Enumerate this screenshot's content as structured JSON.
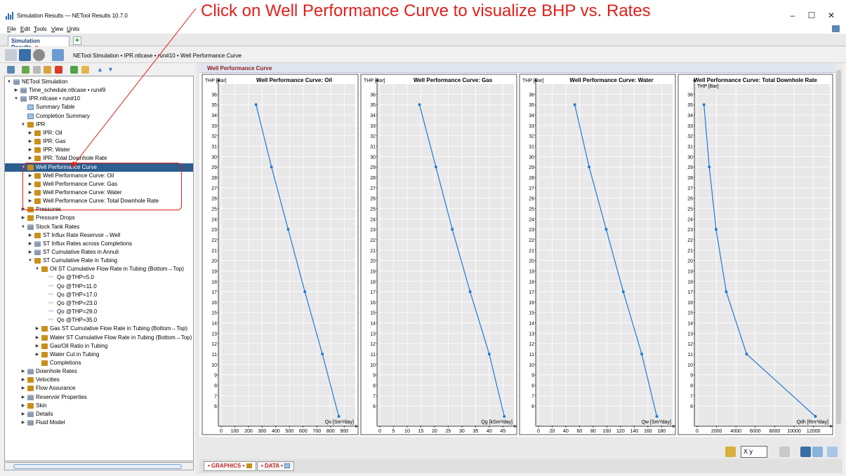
{
  "window": {
    "title": "Simulation Results — NETool Results 10.7.0",
    "minimize": "–",
    "maximize": "☐",
    "close": "✕"
  },
  "callout": "Click on Well Performance Curve to visualize BHP vs. Rates",
  "menu": [
    "File",
    "Edit",
    "Tools",
    "View",
    "Units"
  ],
  "tabs": {
    "active": "Simulation Results",
    "close": "✕",
    "add": "+"
  },
  "breadcrumb": "NETool Simulation  •  IPR.ntlcase • run#10  •  Well Performance Curve",
  "tree": [
    {
      "label": "NETool Simulation",
      "level": 0,
      "tw": "▼",
      "icon": "folder"
    },
    {
      "label": "Time_schedule.ntlcase • run#9",
      "level": 1,
      "tw": "▶",
      "icon": "folder"
    },
    {
      "label": "IPR.ntlcase • run#10",
      "level": 1,
      "tw": "▼",
      "icon": "folder"
    },
    {
      "label": "Summary Table",
      "level": 2,
      "tw": "",
      "icon": "table"
    },
    {
      "label": "Completion Summary",
      "level": 2,
      "tw": "",
      "icon": "table"
    },
    {
      "label": "IPR",
      "level": 2,
      "tw": "▼",
      "icon": "chart"
    },
    {
      "label": "IPR: Oil",
      "level": 3,
      "tw": "▶",
      "icon": "chart"
    },
    {
      "label": "IPR: Gas",
      "level": 3,
      "tw": "▶",
      "icon": "chart"
    },
    {
      "label": "IPR: Water",
      "level": 3,
      "tw": "▶",
      "icon": "chart"
    },
    {
      "label": "IPR: Total Downhole Rate",
      "level": 3,
      "tw": "▶",
      "icon": "chart"
    },
    {
      "label": "Well Performance Curve",
      "level": 2,
      "tw": "▼",
      "icon": "chart",
      "selected": true
    },
    {
      "label": "Well Performance Curve: Oil",
      "level": 3,
      "tw": "▶",
      "icon": "chart"
    },
    {
      "label": "Well Performance Curve: Gas",
      "level": 3,
      "tw": "▶",
      "icon": "chart"
    },
    {
      "label": "Well Performance Curve: Water",
      "level": 3,
      "tw": "▶",
      "icon": "chart"
    },
    {
      "label": "Well Performance Curve: Total Downhole Rate",
      "level": 3,
      "tw": "▶",
      "icon": "chart"
    },
    {
      "label": "Pressures",
      "level": 2,
      "tw": "▶",
      "icon": "chart"
    },
    {
      "label": "Pressure Drops",
      "level": 2,
      "tw": "▶",
      "icon": "chart"
    },
    {
      "label": "Stock Tank Rates",
      "level": 2,
      "tw": "▼",
      "icon": "folder"
    },
    {
      "label": "ST Influx Rate Reservoir→Well",
      "level": 3,
      "tw": "▶",
      "icon": "chart"
    },
    {
      "label": "ST Influx Rates across Completions",
      "level": 3,
      "tw": "▶",
      "icon": "folder"
    },
    {
      "label": "ST Cumulative Rates in Annuli",
      "level": 3,
      "tw": "▶",
      "icon": "folder"
    },
    {
      "label": "ST Cumulative Rate in Tubing",
      "level": 3,
      "tw": "▼",
      "icon": "chart"
    },
    {
      "label": "Oil ST Cumulative Flow Rate in Tubing (Bottom→Top)",
      "level": 4,
      "tw": "▼",
      "icon": "chart"
    },
    {
      "label": "Qo  @THP=5.0",
      "level": 5,
      "tw": "",
      "icon": "curve"
    },
    {
      "label": "Qo  @THP=11.0",
      "level": 5,
      "tw": "",
      "icon": "curve"
    },
    {
      "label": "Qo  @THP=17.0",
      "level": 5,
      "tw": "",
      "icon": "curve"
    },
    {
      "label": "Qo  @THP=23.0",
      "level": 5,
      "tw": "",
      "icon": "curve"
    },
    {
      "label": "Qo  @THP=29.0",
      "level": 5,
      "tw": "",
      "icon": "curve"
    },
    {
      "label": "Qo  @THP=35.0",
      "level": 5,
      "tw": "",
      "icon": "curve"
    },
    {
      "label": "Gas ST Cumulative Flow Rate in Tubing (Bottom→Top)",
      "level": 4,
      "tw": "▶",
      "icon": "chart"
    },
    {
      "label": "Water ST Cumulative Flow Rate in Tubing (Bottom→Top)",
      "level": 4,
      "tw": "▶",
      "icon": "chart"
    },
    {
      "label": "Gas/Oil Ratio in Tubing",
      "level": 4,
      "tw": "▶",
      "icon": "chart"
    },
    {
      "label": "Water Cut in Tubing",
      "level": 4,
      "tw": "▶",
      "icon": "chart"
    },
    {
      "label": "Completions",
      "level": 4,
      "tw": "",
      "icon": "chart"
    },
    {
      "label": "Downhole Rates",
      "level": 2,
      "tw": "▶",
      "icon": "folder"
    },
    {
      "label": "Velocities",
      "level": 2,
      "tw": "▶",
      "icon": "chart"
    },
    {
      "label": "Flow Assurance",
      "level": 2,
      "tw": "▶",
      "icon": "chart"
    },
    {
      "label": "Reservoir Properties",
      "level": 2,
      "tw": "▶",
      "icon": "folder"
    },
    {
      "label": "Skin",
      "level": 2,
      "tw": "▶",
      "icon": "chart"
    },
    {
      "label": "Details",
      "level": 2,
      "tw": "▶",
      "icon": "folder"
    },
    {
      "label": "Fluid Model",
      "level": 2,
      "tw": "▶",
      "icon": "folder"
    }
  ],
  "right_panel": {
    "title": "Well Performance Curve"
  },
  "bottom_tabs": [
    "• GRAPHICS •",
    "• DATA •"
  ],
  "axis_button": "X y",
  "colors": {
    "line": "#1f7ad6",
    "selected": "#2e5d8f",
    "callout": "#e0201b",
    "header_text": "#8b1a1a"
  },
  "chart_data": [
    {
      "type": "line",
      "title": "Well Performance Curve: Oil",
      "ylabel": "THP [Bar]",
      "xlabel": "Qo [Sm³/day]",
      "xticks": [
        0,
        100,
        200,
        300,
        400,
        500,
        600,
        700,
        800,
        900
      ],
      "ylim": [
        5,
        36
      ],
      "x": [
        255,
        368,
        490,
        612,
        740,
        860
      ],
      "y": [
        35,
        29,
        23,
        17,
        11,
        5
      ]
    },
    {
      "type": "line",
      "title": "Well Performance Curve: Gas",
      "ylabel": "THP [Bar]",
      "xlabel": "Qg [kSm³/day]",
      "xticks": [
        0,
        5,
        10,
        15,
        20,
        25,
        30,
        35,
        40,
        45
      ],
      "ylim": [
        5,
        36
      ],
      "x": [
        14.5,
        20.5,
        26.5,
        33.0,
        40.0,
        45.5
      ],
      "y": [
        35,
        29,
        23,
        17,
        11,
        5
      ]
    },
    {
      "type": "line",
      "title": "Well Performance Curve: Water",
      "ylabel": "THP [Bar]",
      "xlabel": "Qw [Sm³/day]",
      "xticks": [
        0,
        20,
        40,
        60,
        80,
        100,
        120,
        140,
        160,
        180
      ],
      "ylim": [
        5,
        36
      ],
      "x": [
        53,
        74,
        99,
        124,
        151,
        173
      ],
      "y": [
        35,
        29,
        23,
        17,
        11,
        5
      ]
    },
    {
      "type": "line",
      "title": "Well Performance Curve: Total Downhole Rate",
      "ylabel": "THP [Bar]",
      "xlabel": "Qdh [Rm³/day]",
      "xticks": [
        0,
        2000,
        4000,
        6000,
        8000,
        10000,
        12000
      ],
      "ylim": [
        5,
        36
      ],
      "x": [
        700,
        1250,
        1950,
        3000,
        5100,
        12200
      ],
      "y": [
        35,
        29,
        23,
        17,
        11,
        5
      ]
    }
  ]
}
